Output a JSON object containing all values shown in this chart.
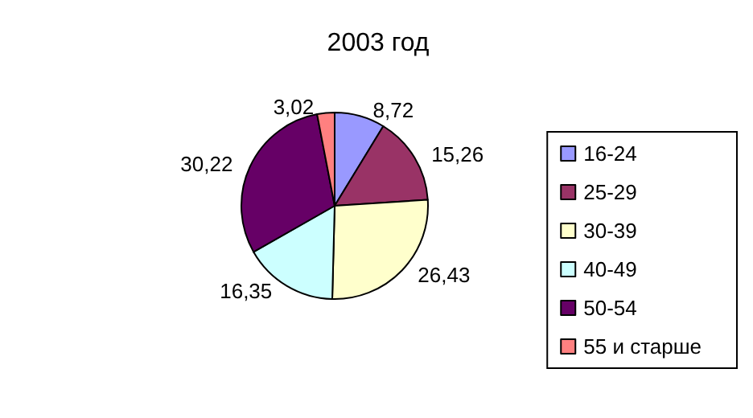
{
  "chart_data": {
    "type": "pie",
    "title": "2003 год",
    "categories": [
      "16-24",
      "25-29",
      "30-39",
      "40-49",
      "50-54",
      "55 и старше"
    ],
    "values": [
      8.72,
      15.26,
      26.43,
      16.35,
      30.22,
      3.02
    ],
    "value_labels": [
      "8,72",
      "15,26",
      "26,43",
      "16,35",
      "30,22",
      "3,02"
    ],
    "colors": [
      "#9999ff",
      "#993366",
      "#ffffcc",
      "#ccffff",
      "#660066",
      "#ff8080"
    ],
    "legend": "right"
  }
}
